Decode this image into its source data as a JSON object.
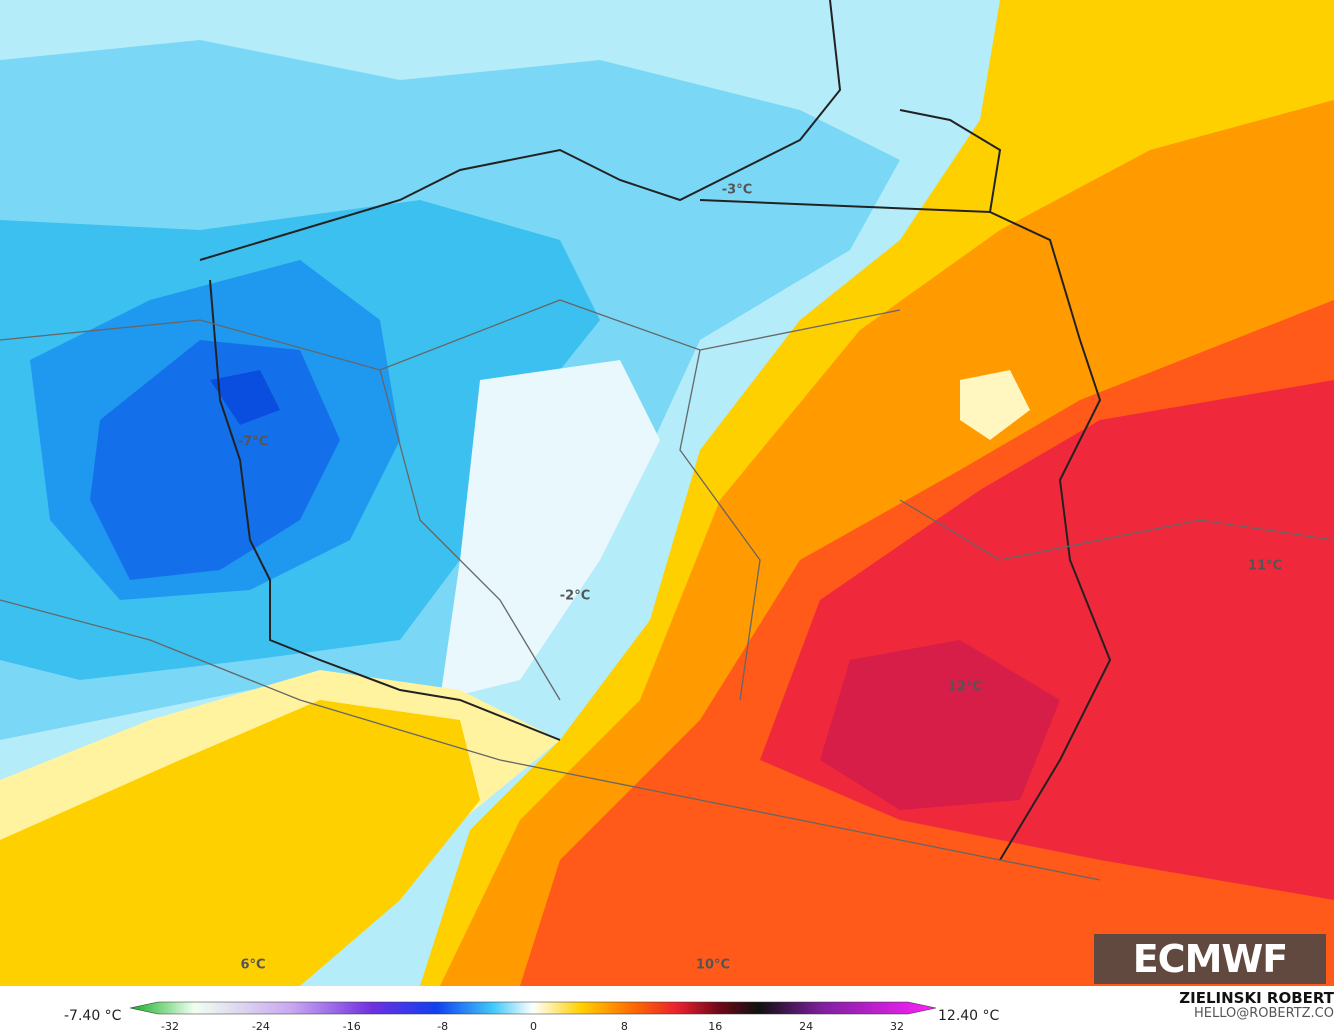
{
  "map": {
    "labels": [
      {
        "text": "-3°C"
      },
      {
        "text": "-7°C"
      },
      {
        "text": "-2°C"
      },
      {
        "text": "11°C"
      },
      {
        "text": "12°C"
      },
      {
        "text": "6°C"
      },
      {
        "text": "10°C"
      }
    ]
  },
  "logo": "ECMWF",
  "colorbar": {
    "min_label": "-7.40 °C",
    "max_label": "12.40 °C",
    "ticks": [
      -32,
      -24,
      -16,
      -8,
      0,
      8,
      16,
      24,
      32
    ]
  },
  "credits": {
    "author": "ZIELINSKI ROBERT",
    "email": "HELLO@ROBERTZ.CO"
  }
}
